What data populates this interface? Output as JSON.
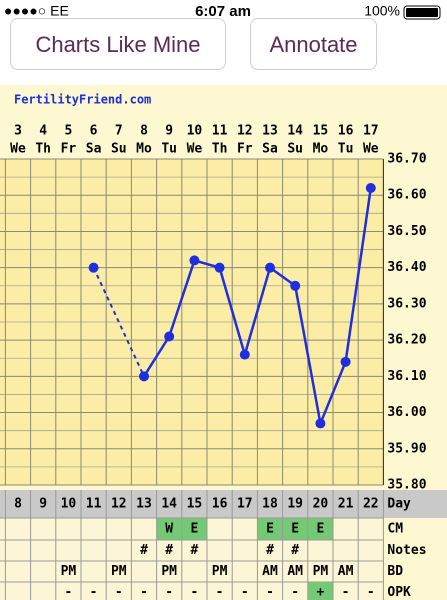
{
  "status_bar": {
    "carrier": "●●●●○ EE",
    "time": "6:07 am",
    "battery": "100%"
  },
  "buttons": [
    "Charts Like Mine",
    "Annotate"
  ],
  "chart_data": {
    "type": "line",
    "brand": "FertilityFriend.com",
    "categories": [
      "3",
      "4",
      "5",
      "6",
      "7",
      "8",
      "9",
      "10",
      "11",
      "12",
      "13",
      "14",
      "15",
      "16",
      "17"
    ],
    "weekdays": [
      "We",
      "Th",
      "Fr",
      "Sa",
      "Su",
      "Mo",
      "Tu",
      "We",
      "Th",
      "Fr",
      "Sa",
      "Su",
      "Mo",
      "Tu",
      "We"
    ],
    "values": [
      null,
      null,
      null,
      36.4,
      null,
      36.1,
      36.21,
      36.42,
      36.4,
      36.16,
      36.4,
      36.35,
      35.97,
      36.14,
      36.62
    ],
    "color": "#1f2fe0",
    "ylim": [
      35.8,
      36.7
    ],
    "yticks": [
      {
        "value": 35.8,
        "label": "35.80"
      },
      {
        "value": 35.9,
        "label": "35.90"
      },
      {
        "value": 36.0,
        "label": "36.00"
      },
      {
        "value": 36.1,
        "label": "36.10"
      },
      {
        "value": 36.2,
        "label": "36.20"
      },
      {
        "value": 36.3,
        "label": "36.30"
      },
      {
        "value": 36.4,
        "label": "36.40"
      },
      {
        "value": 36.5,
        "label": "36.50"
      },
      {
        "value": 36.6,
        "label": "36.60"
      },
      {
        "value": 36.7,
        "label": "36.70"
      }
    ],
    "grid": true
  },
  "table": {
    "day_label": "Day",
    "cycle_days": [
      "8",
      "9",
      "10",
      "11",
      "12",
      "13",
      "14",
      "15",
      "16",
      "17",
      "18",
      "19",
      "20",
      "21",
      "22"
    ],
    "rows": [
      {
        "label": "CM",
        "cells": [
          null,
          null,
          null,
          null,
          null,
          null,
          "W",
          "E",
          null,
          null,
          "E",
          "E",
          "E",
          null,
          null
        ],
        "highlight": [
          6,
          7,
          10,
          11,
          12
        ],
        "highlight_color": "#74c974"
      },
      {
        "label": "Notes",
        "cells": [
          null,
          null,
          null,
          null,
          null,
          "#",
          "#",
          "#",
          null,
          null,
          "#",
          "#",
          null,
          null,
          null
        ]
      },
      {
        "label": "BD",
        "cells": [
          null,
          null,
          "PM",
          null,
          "PM",
          null,
          "PM",
          null,
          "PM",
          null,
          "AM",
          "AM",
          "PM",
          "AM",
          null
        ]
      },
      {
        "label": "OPK",
        "cells": [
          null,
          null,
          "-",
          "-",
          "-",
          "-",
          "-",
          "-",
          "-",
          "-",
          "-",
          "-",
          "+",
          "-",
          "-"
        ],
        "highlight": [
          12
        ],
        "highlight_color": "#74c974"
      }
    ]
  }
}
